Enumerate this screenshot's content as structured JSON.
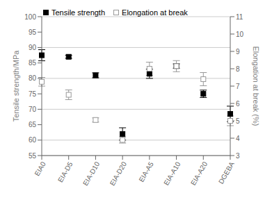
{
  "chart_data": {
    "type": "scatter",
    "categories": [
      "EIA0",
      "EIA-D5",
      "EIA-D10",
      "EIA-D20",
      "EIA-A5",
      "EIA-A10",
      "EIA-A20",
      "DGEBA"
    ],
    "series": [
      {
        "name": "Tensile strength",
        "color": "#000000",
        "marker": "square",
        "values": [
          87.5,
          87.0,
          81.0,
          62.0,
          81.5,
          84.0,
          75.0,
          68.5
        ],
        "errors": [
          1.8,
          0.5,
          0.8,
          2.0,
          1.5,
          0.7,
          1.2,
          2.5
        ]
      },
      {
        "name": "Elongation at break",
        "color": "#999999",
        "marker": "open_square",
        "axis": "y2",
        "values": [
          7.25,
          6.5,
          5.05,
          3.9,
          8.0,
          8.15,
          7.4,
          5.0
        ],
        "errors": [
          0.25,
          0.28,
          0.12,
          0.18,
          0.38,
          0.32,
          0.38,
          0.28
        ]
      }
    ],
    "ylabel": "Tensile strength/MPa",
    "y2label": "Elongation at break (%)",
    "ylim": [
      55,
      100
    ],
    "yticks": [
      55,
      60,
      65,
      70,
      75,
      80,
      85,
      90,
      95,
      100
    ],
    "y2lim": [
      3,
      11
    ],
    "y2ticks": [
      3,
      4,
      5,
      6,
      7,
      8,
      9,
      10,
      11
    ],
    "grid": true,
    "legend": "upper left"
  }
}
